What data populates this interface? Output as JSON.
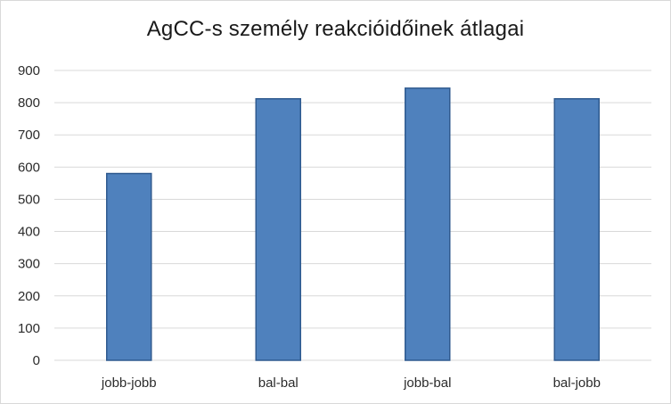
{
  "chart_data": {
    "type": "bar",
    "title": "AgCC-s személy reakcióidőinek átlagai",
    "categories": [
      "jobb-jobb",
      "bal-bal",
      "jobb-bal",
      "bal-jobb"
    ],
    "values": [
      580,
      812,
      845,
      812
    ],
    "ylim": [
      0,
      900
    ],
    "yticks": [
      0,
      100,
      200,
      300,
      400,
      500,
      600,
      700,
      800,
      900
    ],
    "grid": true,
    "bar_color": "#4f81bd",
    "bar_edge_color": "#2f5a8f",
    "grid_color": "#d9d9d9"
  }
}
